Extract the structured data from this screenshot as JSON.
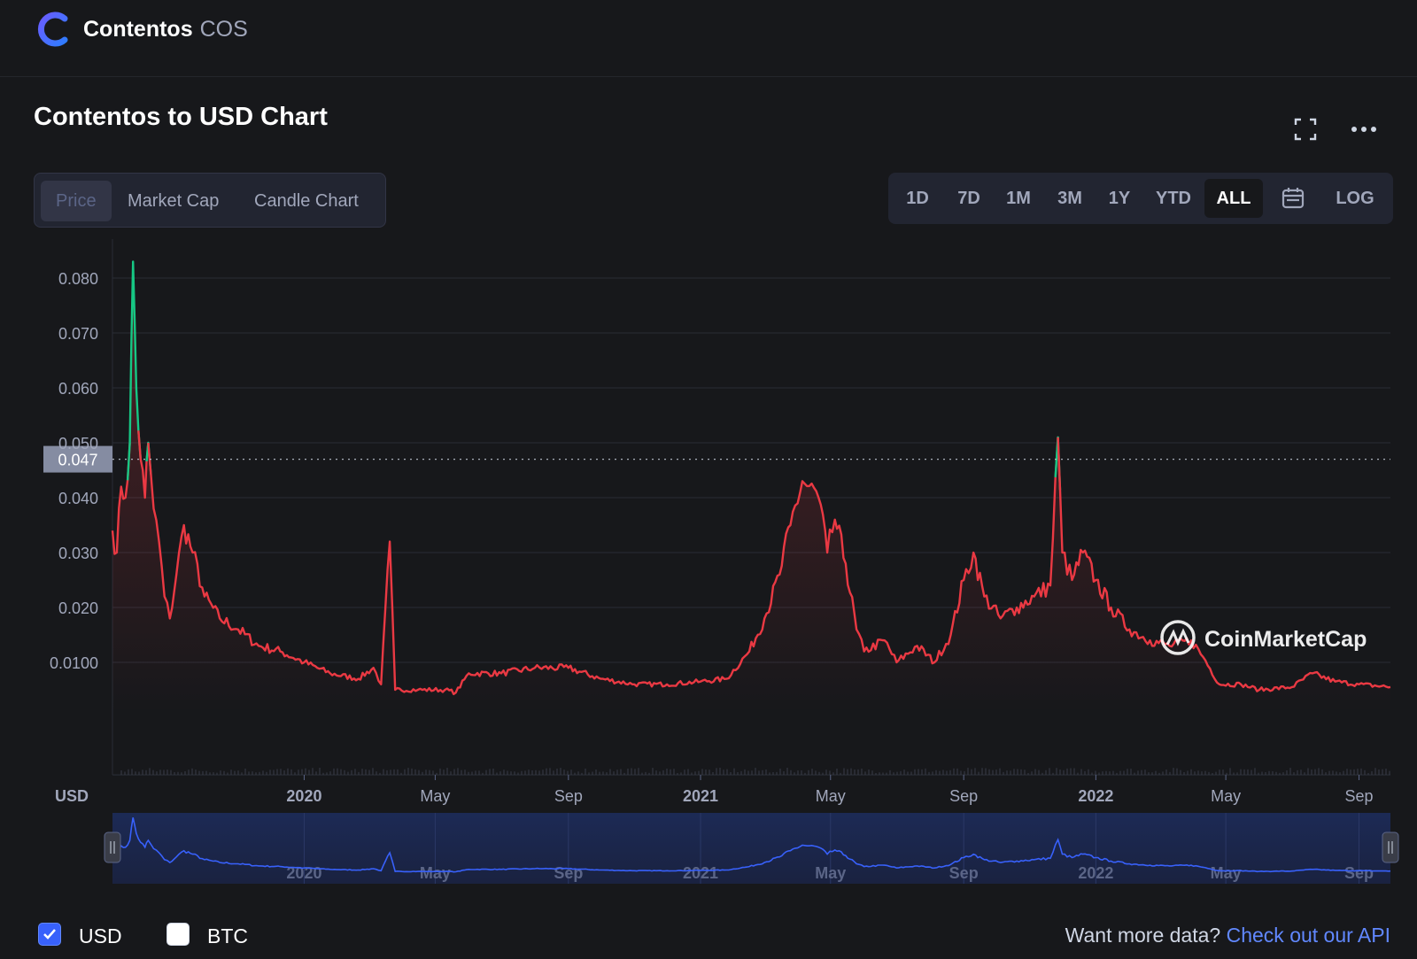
{
  "header": {
    "coin_name": "Contentos",
    "coin_symbol": "COS",
    "logo_icon": "contentos-logo-icon"
  },
  "chart_header": {
    "title": "Contentos to USD Chart",
    "fullscreen_icon": "fullscreen-icon",
    "more_icon": "more-dots-icon"
  },
  "chart_type_tabs": [
    {
      "label": "Price",
      "active": true
    },
    {
      "label": "Market Cap",
      "active": false
    },
    {
      "label": "Candle Chart",
      "active": false
    }
  ],
  "range_tabs": [
    {
      "label": "1D",
      "active": false
    },
    {
      "label": "7D",
      "active": false
    },
    {
      "label": "1M",
      "active": false
    },
    {
      "label": "3M",
      "active": false
    },
    {
      "label": "1Y",
      "active": false
    },
    {
      "label": "YTD",
      "active": false
    },
    {
      "label": "ALL",
      "active": true
    },
    {
      "label": "",
      "icon": "calendar-icon",
      "active": false
    },
    {
      "label": "LOG",
      "active": false
    }
  ],
  "colors": {
    "background": "#17181b",
    "gain": "#16c784",
    "loss": "#ea3943",
    "grid": "#2a2d36",
    "navigator_line": "#3861fb",
    "link": "#6188ff"
  },
  "chart_data": {
    "type": "area",
    "title": "Contentos to USD Chart",
    "xlabel": "",
    "ylabel": "USD",
    "x_range": [
      "2019-07-08",
      "2022-09-30"
    ],
    "ylim": [
      0,
      0.09
    ],
    "y_ticks": [
      "0.080",
      "0.070",
      "0.060",
      "0.050",
      "0.040",
      "0.030",
      "0.020",
      "0.0100"
    ],
    "x_ticks": [
      {
        "label": "2020",
        "date": "2020-01-01",
        "major": true
      },
      {
        "label": "May",
        "date": "2020-05-01",
        "major": false
      },
      {
        "label": "Sep",
        "date": "2020-09-01",
        "major": false
      },
      {
        "label": "2021",
        "date": "2021-01-01",
        "major": true
      },
      {
        "label": "May",
        "date": "2021-05-01",
        "major": false
      },
      {
        "label": "Sep",
        "date": "2021-09-01",
        "major": false
      },
      {
        "label": "2022",
        "date": "2022-01-01",
        "major": true
      },
      {
        "label": "May",
        "date": "2022-05-01",
        "major": false
      },
      {
        "label": "Sep",
        "date": "2022-09-01",
        "major": false
      }
    ],
    "reference_price": 0.047,
    "reference_label": "0.047",
    "grid": true,
    "series": [
      {
        "points": [
          [
            "2019-07-08",
            0.034
          ],
          [
            "2019-07-12",
            0.03
          ],
          [
            "2019-07-16",
            0.042
          ],
          [
            "2019-07-20",
            0.04
          ],
          [
            "2019-07-24",
            0.05
          ],
          [
            "2019-07-27",
            0.083
          ],
          [
            "2019-07-30",
            0.06
          ],
          [
            "2019-08-03",
            0.047
          ],
          [
            "2019-08-07",
            0.04
          ],
          [
            "2019-08-10",
            0.05
          ],
          [
            "2019-08-15",
            0.038
          ],
          [
            "2019-08-20",
            0.032
          ],
          [
            "2019-08-25",
            0.022
          ],
          [
            "2019-08-30",
            0.018
          ],
          [
            "2019-09-05",
            0.026
          ],
          [
            "2019-09-12",
            0.035
          ],
          [
            "2019-09-20",
            0.03
          ],
          [
            "2019-10-01",
            0.022
          ],
          [
            "2019-10-15",
            0.018
          ],
          [
            "2019-11-01",
            0.016
          ],
          [
            "2019-11-20",
            0.013
          ],
          [
            "2019-12-10",
            0.012
          ],
          [
            "2020-01-01",
            0.01
          ],
          [
            "2020-01-25",
            0.008
          ],
          [
            "2020-02-20",
            0.007
          ],
          [
            "2020-03-05",
            0.009
          ],
          [
            "2020-03-12",
            0.006
          ],
          [
            "2020-03-20",
            0.032
          ],
          [
            "2020-03-25",
            0.005
          ],
          [
            "2020-04-15",
            0.005
          ],
          [
            "2020-05-10",
            0.005
          ],
          [
            "2020-05-20",
            0.0045
          ],
          [
            "2020-06-01",
            0.008
          ],
          [
            "2020-07-01",
            0.008
          ],
          [
            "2020-08-01",
            0.009
          ],
          [
            "2020-09-01",
            0.009
          ],
          [
            "2020-10-01",
            0.007
          ],
          [
            "2020-11-01",
            0.006
          ],
          [
            "2020-12-01",
            0.006
          ],
          [
            "2021-01-01",
            0.0065
          ],
          [
            "2021-01-25",
            0.007
          ],
          [
            "2021-02-15",
            0.012
          ],
          [
            "2021-03-01",
            0.018
          ],
          [
            "2021-03-15",
            0.026
          ],
          [
            "2021-03-25",
            0.035
          ],
          [
            "2021-04-05",
            0.043
          ],
          [
            "2021-04-20",
            0.04
          ],
          [
            "2021-04-28",
            0.03
          ],
          [
            "2021-05-05",
            0.036
          ],
          [
            "2021-05-15",
            0.028
          ],
          [
            "2021-05-25",
            0.016
          ],
          [
            "2021-06-01",
            0.012
          ],
          [
            "2021-06-20",
            0.014
          ],
          [
            "2021-07-01",
            0.01
          ],
          [
            "2021-07-20",
            0.013
          ],
          [
            "2021-08-05",
            0.01
          ],
          [
            "2021-08-20",
            0.015
          ],
          [
            "2021-09-01",
            0.025
          ],
          [
            "2021-09-10",
            0.03
          ],
          [
            "2021-09-20",
            0.022
          ],
          [
            "2021-10-05",
            0.018
          ],
          [
            "2021-10-20",
            0.02
          ],
          [
            "2021-11-05",
            0.022
          ],
          [
            "2021-11-20",
            0.024
          ],
          [
            "2021-11-27",
            0.051
          ],
          [
            "2021-12-01",
            0.03
          ],
          [
            "2021-12-10",
            0.025
          ],
          [
            "2021-12-20",
            0.03
          ],
          [
            "2022-01-01",
            0.025
          ],
          [
            "2022-01-15",
            0.02
          ],
          [
            "2022-02-01",
            0.016
          ],
          [
            "2022-02-20",
            0.014
          ],
          [
            "2022-03-10",
            0.013
          ],
          [
            "2022-03-30",
            0.014
          ],
          [
            "2022-04-10",
            0.011
          ],
          [
            "2022-04-25",
            0.006
          ],
          [
            "2022-05-15",
            0.006
          ],
          [
            "2022-06-01",
            0.005
          ],
          [
            "2022-07-01",
            0.0055
          ],
          [
            "2022-07-20",
            0.008
          ],
          [
            "2022-08-10",
            0.0065
          ],
          [
            "2022-09-01",
            0.006
          ],
          [
            "2022-09-30",
            0.0055
          ]
        ]
      }
    ],
    "navigator_ticks": [
      "2020",
      "May",
      "Sep",
      "2021",
      "May",
      "Sep",
      "2022",
      "May",
      "Sep"
    ],
    "watermark": "CoinMarketCap"
  },
  "legend": {
    "usd_label": "USD",
    "usd_checked": true,
    "btc_label": "BTC",
    "btc_checked": false
  },
  "footer": {
    "prompt": "Want more data?",
    "link_text": "Check out our API"
  }
}
